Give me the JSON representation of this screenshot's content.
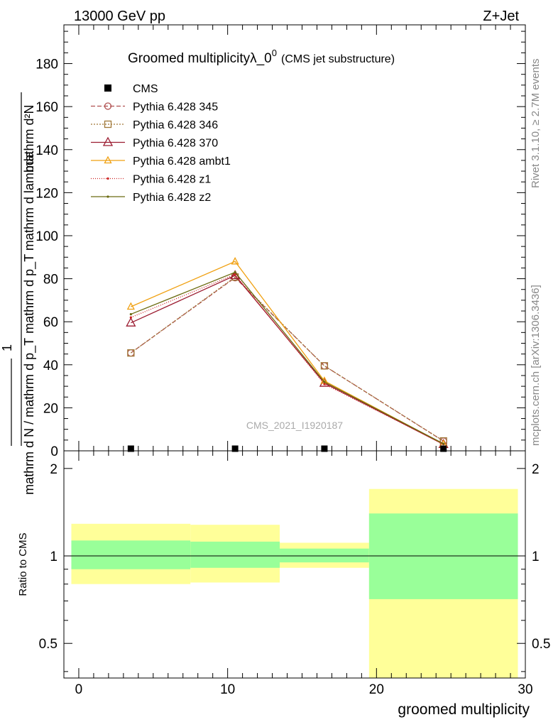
{
  "header": {
    "energy_label": "13000 GeV pp",
    "process_label": "Z+Jet"
  },
  "side_text": {
    "rivet": "Rivet 3.1.10, ≥ 2.7M events",
    "mcplots": "mcplots.cern.ch [arXiv:1306.3436]"
  },
  "watermark": "CMS_2021_I1920187",
  "chart_data": [
    {
      "type": "line",
      "title": "Groomed multiplicityλ_0",
      "title_sup": "0",
      "subtitle": "(CMS jet substructure)",
      "ylabel_numerator": "mathrm d²N",
      "ylabel_denominator": "mathrm d p_T mathrm d lambda",
      "ylabel_prefix_num": "1",
      "ylabel_prefix_den": "mathrm d N / mathrm d p_T",
      "ylim": [
        0,
        198
      ],
      "yticks": [
        0,
        20,
        40,
        60,
        80,
        100,
        120,
        140,
        160,
        180
      ],
      "xlim": [
        -1,
        30
      ],
      "grid": false,
      "legend_position": "top-left",
      "data_series": {
        "name": "CMS",
        "x": [
          3.5,
          10.5,
          16.5,
          24.5
        ],
        "y": [
          0.5,
          0.5,
          0.5,
          0.5
        ]
      },
      "series": [
        {
          "name": "Pythia 6.428 345",
          "color": "#b05050",
          "dash": "6,3",
          "marker": "circle",
          "x": [
            3.5,
            10.5,
            16.5,
            24.5
          ],
          "y": [
            45.5,
            80.5,
            39.5,
            4.5
          ]
        },
        {
          "name": "Pythia 6.428 346",
          "color": "#a07838",
          "dash": "2,2",
          "marker": "square",
          "x": [
            3.5,
            10.5,
            16.5,
            24.5
          ],
          "y": [
            45.5,
            80.8,
            39.5,
            4.6
          ]
        },
        {
          "name": "Pythia 6.428 370",
          "color": "#9b1b30",
          "dash": "",
          "marker": "triangle",
          "x": [
            3.5,
            10.5,
            16.5,
            24.5
          ],
          "y": [
            59.5,
            81.5,
            31.5,
            3.0
          ]
        },
        {
          "name": "Pythia 6.428 ambt1",
          "color": "#f0a010",
          "dash": "",
          "marker": "triangle-small",
          "x": [
            3.5,
            10.5,
            16.5,
            24.5
          ],
          "y": [
            67.0,
            88.0,
            32.5,
            3.2
          ]
        },
        {
          "name": "Pythia 6.428 z1",
          "color": "#cc2020",
          "dash": "1,2",
          "marker": "dot",
          "x": [
            3.5,
            10.5,
            16.5,
            24.5
          ],
          "y": [
            62.0,
            82.0,
            31.0,
            3.1
          ]
        },
        {
          "name": "Pythia 6.428 z2",
          "color": "#6b6b10",
          "dash": "",
          "marker": "dot",
          "x": [
            3.5,
            10.5,
            16.5,
            24.5
          ],
          "y": [
            63.5,
            83.0,
            32.0,
            3.3
          ]
        }
      ]
    },
    {
      "type": "area",
      "ylabel": "Ratio to CMS",
      "xlabel": "groomed multiplicity",
      "xlim": [
        -1,
        30
      ],
      "ylim": [
        0.38,
        2.3
      ],
      "log_y": true,
      "yticks": [
        0.5,
        1,
        2
      ],
      "xticks": [
        0,
        10,
        20,
        30
      ],
      "reference_line": 1,
      "bands": [
        {
          "x_low": -0.5,
          "x_high": 7.5,
          "yellow_low": 0.8,
          "yellow_high": 1.29,
          "green_low": 0.9,
          "green_high": 1.13
        },
        {
          "x_low": 7.5,
          "x_high": 13.5,
          "yellow_low": 0.81,
          "yellow_high": 1.28,
          "green_low": 0.91,
          "green_high": 1.12
        },
        {
          "x_low": 13.5,
          "x_high": 19.5,
          "yellow_low": 0.91,
          "yellow_high": 1.11,
          "green_low": 0.95,
          "green_high": 1.06
        },
        {
          "x_low": 19.5,
          "x_high": 29.5,
          "yellow_low": 0.35,
          "yellow_high": 1.7,
          "green_low": 0.71,
          "green_high": 1.4
        }
      ],
      "colors": {
        "yellow": "#ffff99",
        "green": "#99ff99"
      }
    }
  ]
}
